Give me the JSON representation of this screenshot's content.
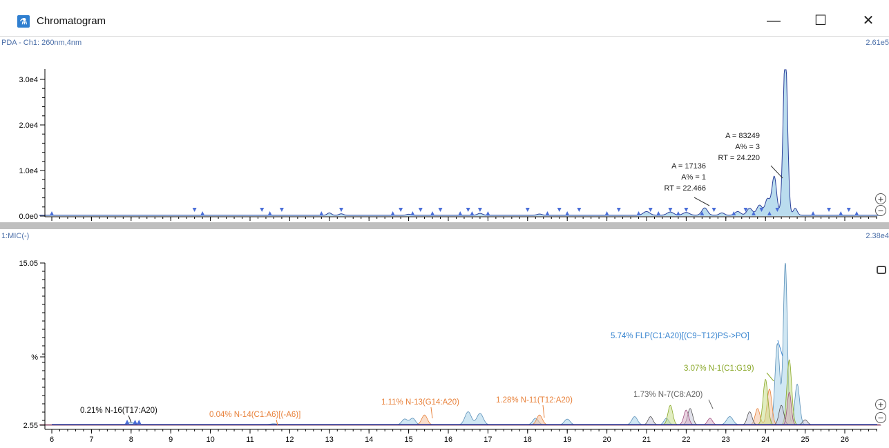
{
  "window": {
    "title": "Chromatogram",
    "icon": "app-logo-icon",
    "minimize": "—",
    "maximize": "☐",
    "close": "✕"
  },
  "top_pane": {
    "label": "PDA - Ch1: 260nm,4nm",
    "scale": "2.61e5",
    "y_ticks": [
      "0.0e0",
      "1.0e4",
      "2.0e4",
      "3.0e4"
    ],
    "x_ticks": [
      "6",
      "7",
      "8",
      "9",
      "10",
      "11",
      "12",
      "13",
      "14",
      "15",
      "16",
      "17",
      "18",
      "19",
      "20",
      "21",
      "22",
      "23",
      "24",
      "25",
      "26"
    ],
    "annotations": [
      {
        "lines": [
          "A = 17136",
          "A% = 1",
          "RT = 22.466"
        ]
      },
      {
        "lines": [
          "A = 83249",
          "A% = 3",
          "RT = 24.220"
        ]
      }
    ]
  },
  "bottom_pane": {
    "label": "1:MIC(-)",
    "scale": "2.38e4",
    "y_ticks": [
      "2.55",
      "%",
      "15.05"
    ],
    "x_ticks": [
      "6",
      "7",
      "8",
      "9",
      "10",
      "11",
      "12",
      "13",
      "14",
      "15",
      "16",
      "17",
      "18",
      "19",
      "20",
      "21",
      "22",
      "23",
      "24",
      "25",
      "26"
    ],
    "annotations": [
      {
        "text": "0.21% N-16(T17:A20)",
        "color": "#111111"
      },
      {
        "text": "0.04% N-14(C1:A6)[(-A6)]",
        "color": "#e8813a"
      },
      {
        "text": "1.11% N-13(G14:A20)",
        "color": "#e8813a"
      },
      {
        "text": "1.28% N-11(T12:A20)",
        "color": "#e8813a"
      },
      {
        "text": "1.73% N-7(C8:A20)",
        "color": "#666666"
      },
      {
        "text": "5.74% FLP(C1:A20)[(C9~T12)PS->PO]",
        "color": "#3a86d0"
      },
      {
        "text": "3.07% N-1(C1:G19)",
        "color": "#8aa82a"
      }
    ]
  },
  "colors": {
    "trace": "#2a3f9a",
    "peak_fill": "#a9d3ea",
    "marker": "#4a6ed8"
  }
}
